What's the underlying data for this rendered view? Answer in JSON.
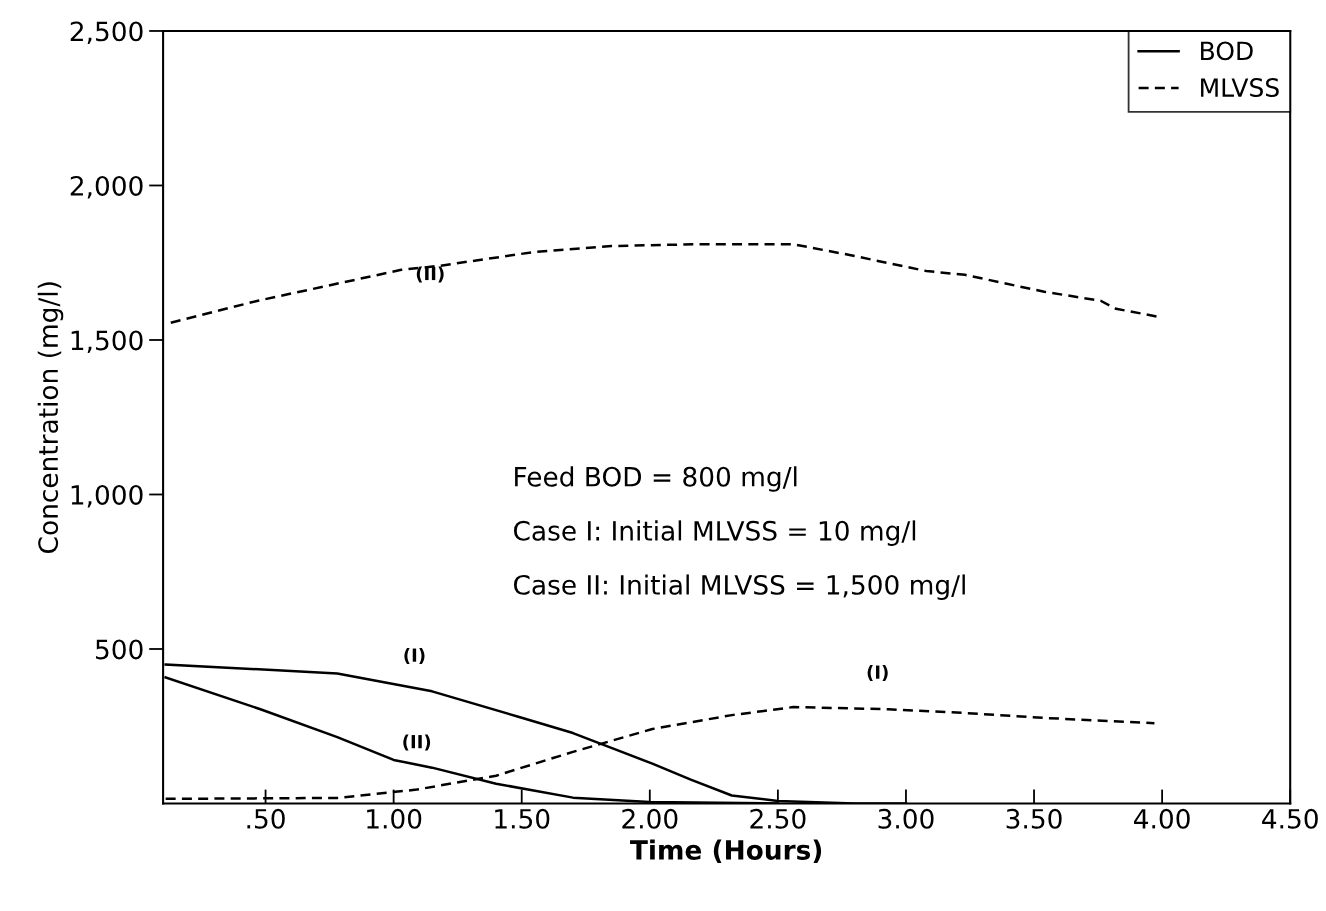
{
  "chart_data": {
    "type": "line",
    "xlabel": "Time (Hours)",
    "ylabel": "Concentration (mg/l)",
    "xlim": [
      0.1,
      4.5
    ],
    "ylim": [
      0,
      2500
    ],
    "xticks": [
      {
        "value": 0.5,
        "label": ".50"
      },
      {
        "value": 1.0,
        "label": "1.00"
      },
      {
        "value": 1.5,
        "label": "1.50"
      },
      {
        "value": 2.0,
        "label": "2.00"
      },
      {
        "value": 2.5,
        "label": "2.50"
      },
      {
        "value": 3.0,
        "label": "3.00"
      },
      {
        "value": 3.5,
        "label": "3.50"
      },
      {
        "value": 4.0,
        "label": "4.00"
      },
      {
        "value": 4.5,
        "label": "4.50"
      }
    ],
    "yticks": [
      {
        "value": 500,
        "label": "500"
      },
      {
        "value": 1000,
        "label": "1,000"
      },
      {
        "value": 1500,
        "label": "1,500"
      },
      {
        "value": 2000,
        "label": "2,000"
      },
      {
        "value": 2500,
        "label": "2,500"
      }
    ],
    "grid": false,
    "legend": "top right",
    "marker": "none",
    "series": [
      {
        "name": "BOD",
        "color": "#000000",
        "line_style": "solid",
        "x": [
          0.11,
          0.78,
          1.15,
          1.49,
          1.7,
          1.85,
          2.01,
          2.16,
          2.32,
          2.5,
          2.8,
          3.0
        ],
        "values": [
          450,
          421,
          363,
          280,
          228,
          180,
          129,
          77,
          26,
          8,
          0,
          0
        ]
      },
      {
        "color": "#000000",
        "line_style": "solid",
        "x": [
          0.11,
          0.48,
          0.78,
          1.0,
          1.15,
          1.4,
          1.7,
          2.0,
          2.5
        ],
        "values": [
          408,
          305,
          215,
          141,
          116,
          64,
          19,
          5,
          0
        ]
      },
      {
        "name": "MLVSS",
        "color": "#000000",
        "line_style": "dashed",
        "x": [
          0.11,
          0.78,
          1.09,
          1.4,
          1.7,
          2.01,
          2.32,
          2.56,
          2.93,
          3.23,
          3.54,
          3.97
        ],
        "values": [
          15,
          18,
          45,
          90,
          167,
          241,
          286,
          312,
          305,
          293,
          277,
          260
        ]
      },
      {
        "color": "#000000",
        "line_style": "dashed",
        "x": [
          0.13,
          0.47,
          1.03,
          1.18,
          1.55,
          1.85,
          2.19,
          2.56,
          2.78,
          3.08,
          3.23,
          3.54,
          3.76,
          3.82,
          3.98
        ],
        "values": [
          1556,
          1627,
          1727,
          1740,
          1785,
          1804,
          1810,
          1810,
          1775,
          1723,
          1711,
          1656,
          1627,
          1601,
          1576
        ]
      }
    ],
    "annotations": [
      "(I)",
      "(II)",
      "(I)",
      "(II)",
      "Feed BOD = 800 mg/l",
      "Case I: Initial MLVSS = 10 mg/l",
      "Case II: Initial MLVSS = 1,500 mg/l"
    ]
  }
}
